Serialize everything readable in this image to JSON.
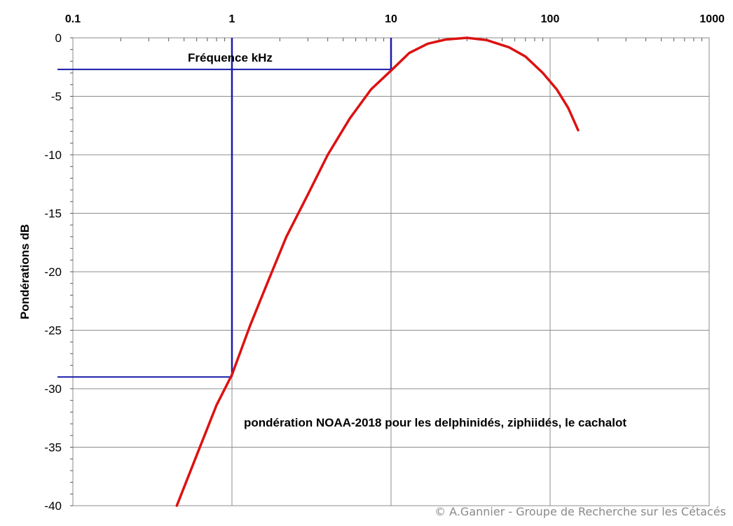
{
  "chart_data": {
    "type": "line",
    "title": "",
    "xlabel": "Fréquence kHz",
    "ylabel": "Pondérations dB",
    "xscale": "log",
    "xlim": [
      0.1,
      1000
    ],
    "ylim": [
      -40,
      0
    ],
    "grid": true,
    "x_ticks": [
      "0.1",
      "1",
      "10",
      "100",
      "1000"
    ],
    "y_ticks": [
      "0",
      "-5",
      "-10",
      "-15",
      "-20",
      "-25",
      "-30",
      "-35",
      "-40"
    ],
    "x_axis_position": "top",
    "series": [
      {
        "color": "#dd1111",
        "x": [
          0.45,
          0.6,
          0.8,
          1,
          1.3,
          1.7,
          2.2,
          3,
          4,
          5.5,
          7.5,
          10,
          13,
          17,
          22,
          30,
          40,
          55,
          70,
          90,
          110,
          130,
          150
        ],
        "y": [
          -40.0,
          -35.7,
          -31.4,
          -28.8,
          -24.6,
          -20.7,
          -17.0,
          -13.4,
          -10.0,
          -6.9,
          -4.4,
          -2.8,
          -1.3,
          -0.5,
          -0.15,
          0,
          -0.2,
          -0.8,
          -1.6,
          -3.0,
          -4.4,
          -6.0,
          -7.9
        ]
      }
    ],
    "reference_lines": [
      {
        "color": "#1a1aaa",
        "x": 1,
        "y": -29
      },
      {
        "color": "#1a1aaa",
        "x": 10,
        "y": -2.7
      }
    ],
    "annotation": "pondération NOAA-2018 pour les delphinidés, ziphiidés, le cachalot",
    "credit": "© A.Gannier - Groupe de Recherche sur les Cétacés"
  }
}
